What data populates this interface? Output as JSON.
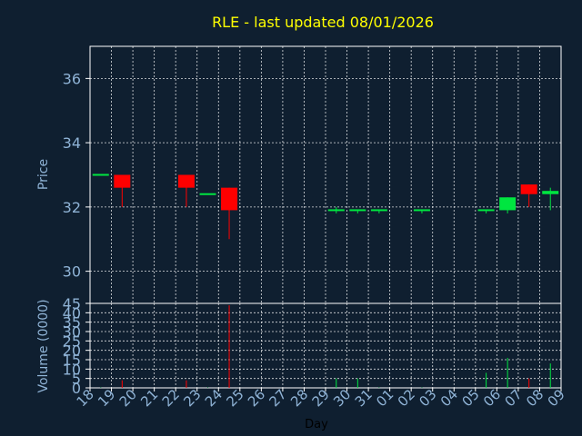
{
  "chart_data": {
    "type": "candlestick",
    "title": "RLE - last updated 08/01/2026",
    "price_panel": {
      "ylabel": "Price",
      "ylim": [
        29,
        37
      ],
      "yticks": [
        30,
        32,
        34,
        36
      ],
      "grid": true
    },
    "volume_panel": {
      "ylabel": "Volume (0000)",
      "ylim": [
        0,
        45
      ],
      "yticks": [
        0,
        5,
        10,
        15,
        20,
        25,
        30,
        35,
        40,
        45
      ],
      "grid": true
    },
    "xlabel": "Day",
    "x_tick_labels": [
      "18",
      "19",
      "20",
      "21",
      "22",
      "23",
      "24",
      "25",
      "26",
      "27",
      "28",
      "29",
      "30",
      "31",
      "01",
      "02",
      "03",
      "04",
      "05",
      "06",
      "07",
      "08",
      "09"
    ],
    "candles": [
      {
        "day": "18",
        "open": 33.0,
        "high": 33.0,
        "low": 33.0,
        "close": 33.0,
        "volume": 0.2
      },
      {
        "day": "19",
        "open": 33.0,
        "high": 33.0,
        "low": 32.0,
        "close": 32.6,
        "volume": 4
      },
      {
        "day": "22",
        "open": 33.0,
        "high": 33.0,
        "low": 32.0,
        "close": 32.6,
        "volume": 4
      },
      {
        "day": "23",
        "open": 32.4,
        "high": 32.4,
        "low": 32.4,
        "close": 32.4,
        "volume": 0.2
      },
      {
        "day": "24",
        "open": 32.6,
        "high": 32.6,
        "low": 31.0,
        "close": 31.9,
        "volume": 44
      },
      {
        "day": "29",
        "open": 31.9,
        "high": 32.0,
        "low": 31.8,
        "close": 31.9,
        "volume": 5
      },
      {
        "day": "30",
        "open": 31.9,
        "high": 31.9,
        "low": 31.8,
        "close": 31.9,
        "volume": 5
      },
      {
        "day": "31",
        "open": 31.9,
        "high": 31.9,
        "low": 31.8,
        "close": 31.9,
        "volume": 0.2
      },
      {
        "day": "02",
        "open": 31.9,
        "high": 31.9,
        "low": 31.8,
        "close": 31.9,
        "volume": 0.2
      },
      {
        "day": "05",
        "open": 31.9,
        "high": 31.9,
        "low": 31.8,
        "close": 31.9,
        "volume": 8
      },
      {
        "day": "06",
        "open": 31.9,
        "high": 32.3,
        "low": 31.8,
        "close": 32.3,
        "volume": 16
      },
      {
        "day": "07",
        "open": 32.7,
        "high": 32.7,
        "low": 32.0,
        "close": 32.4,
        "volume": 5
      },
      {
        "day": "08",
        "open": 32.4,
        "high": 32.6,
        "low": 31.9,
        "close": 32.5,
        "volume": 13
      }
    ],
    "colors": {
      "background": "#0f1f30",
      "title": "#ffff00",
      "axis_text": "#8fb3d6",
      "frame": "#ffffff",
      "grid": "#ffffff",
      "up": "#00e640",
      "down": "#ff0000",
      "xlabel": "#000000"
    }
  }
}
